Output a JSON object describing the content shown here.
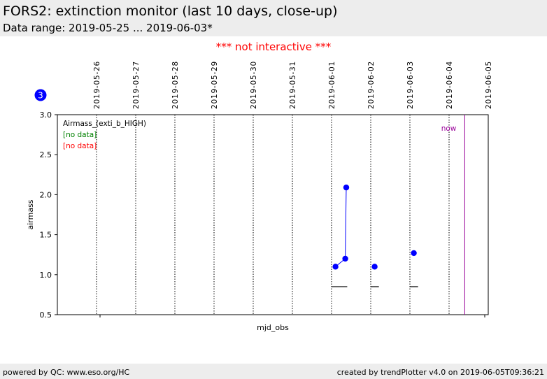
{
  "header": {
    "title": "FORS2: extinction monitor (last 10 days, close-up)",
    "subtitle": "Data range: 2019-05-25 ... 2019-06-03*"
  },
  "notice": "*** not interactive ***",
  "badge": {
    "number": "3",
    "color": "#0000ff"
  },
  "footer": {
    "left": "powered by QC: www.eso.org/HC",
    "right": "created by trendPlotter v4.0 on 2019-06-05T09:36:21"
  },
  "chart_data": {
    "type": "scatter",
    "xlabel": "mjd_obs",
    "ylabel": "airmass",
    "ylim": [
      0.5,
      3.0
    ],
    "xlim": [
      "2019-05-25T00:00",
      "2019-06-05T00:00"
    ],
    "yticks": [
      0.5,
      1.0,
      1.5,
      2.0,
      2.5,
      3.0
    ],
    "ytick_labels": [
      "0.5",
      "1.0",
      "1.5",
      "2.0",
      "2.5",
      "3.0"
    ],
    "date_ticks": [
      "2019-05-26",
      "2019-05-27",
      "2019-05-28",
      "2019-05-29",
      "2019-05-30",
      "2019-05-31",
      "2019-06-01",
      "2019-06-02",
      "2019-06-03",
      "2019-06-04",
      "2019-06-05"
    ],
    "legend": {
      "placement": "top-left",
      "entries": [
        {
          "label": "Airmass_(exti_b_HIGH)",
          "color": "#000000"
        },
        {
          "label": "[no data]",
          "color": "#008000"
        },
        {
          "label": "[no data]",
          "color": "#ff0000"
        }
      ]
    },
    "series": [
      {
        "name": "Airmass_(exti_b_HIGH)",
        "color": "#0000ff",
        "points": [
          {
            "x": "2019-06-01T02:24",
            "y": 1.1
          },
          {
            "x": "2019-06-01T08:24",
            "y": 1.2
          },
          {
            "x": "2019-06-01T09:00",
            "y": 2.09
          },
          {
            "x": "2019-06-02T02:24",
            "y": 1.1
          },
          {
            "x": "2019-06-03T02:24",
            "y": 1.27
          }
        ],
        "connected_groups": [
          [
            0,
            1,
            2
          ]
        ]
      }
    ],
    "reference_segments": [
      {
        "x_start": "2019-05-31T23:52",
        "x_end": "2019-06-01T09:36",
        "y": 0.85
      },
      {
        "x_start": "2019-06-01T23:52",
        "x_end": "2019-06-02T05:00",
        "y": 0.85
      },
      {
        "x_start": "2019-06-02T23:52",
        "x_end": "2019-06-03T05:00",
        "y": 0.85
      }
    ],
    "now_marker": {
      "label": "now",
      "x": "2019-06-04T09:36",
      "color": "#990099"
    },
    "grid": "vertical-dotted-at-date-ticks"
  }
}
